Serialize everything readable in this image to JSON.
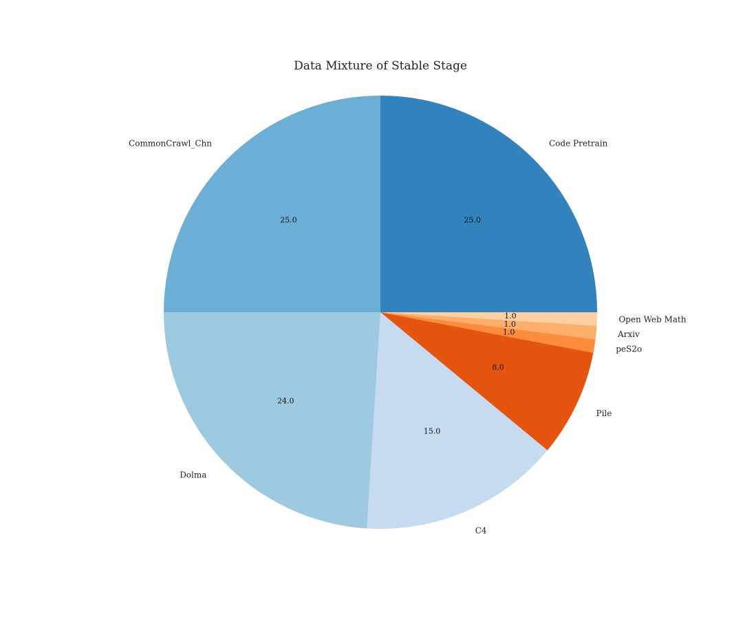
{
  "chart_data": {
    "type": "pie",
    "title": "Data Mixture of Stable Stage",
    "start_angle_deg": 90,
    "direction": "clockwise",
    "slices": [
      {
        "label": "Code Pretrain",
        "value": 25.0,
        "value_label": "25.0",
        "color": "#3182bd"
      },
      {
        "label": "Open Web Math",
        "value": 1.0,
        "value_label": "1.0",
        "color": "#fdd0a2"
      },
      {
        "label": "Arxiv",
        "value": 1.0,
        "value_label": "1.0",
        "color": "#fdae6b"
      },
      {
        "label": "peS2o",
        "value": 1.0,
        "value_label": "1.0",
        "color": "#fd8d3c"
      },
      {
        "label": "Pile",
        "value": 8.0,
        "value_label": "8.0",
        "color": "#e6550d"
      },
      {
        "label": "C4",
        "value": 15.0,
        "value_label": "15.0",
        "color": "#c6dbef"
      },
      {
        "label": "Dolma",
        "value": 24.0,
        "value_label": "24.0",
        "color": "#9ecae1"
      },
      {
        "label": "CommonCrawl_Chn",
        "value": 25.0,
        "value_label": "25.0",
        "color": "#6baed6"
      }
    ]
  }
}
